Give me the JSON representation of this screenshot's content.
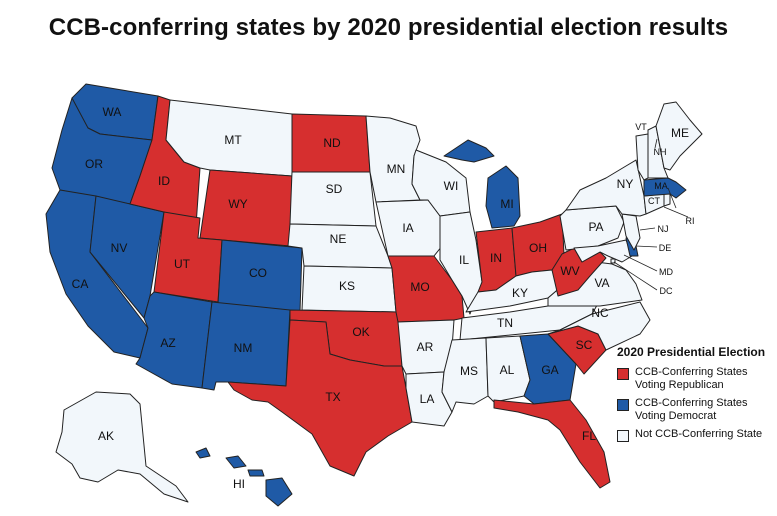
{
  "title": "CCB-conferring states by 2020 presidential election results",
  "colors": {
    "republican": "#d62f2f",
    "democrat": "#1f5aa6",
    "none": "#f2f7fb"
  },
  "legend": {
    "title": "2020 Presidential Election",
    "items": [
      {
        "label": "CCB-Conferring States Voting Republican",
        "category": "republican"
      },
      {
        "label": "CCB-Conferring States Voting Democrat",
        "category": "democrat"
      },
      {
        "label": "Not CCB-Conferring State",
        "category": "none"
      }
    ]
  },
  "states": {
    "WA": "democrat",
    "OR": "democrat",
    "CA": "democrat",
    "NV": "democrat",
    "ID": "republican",
    "MT": "none",
    "WY": "republican",
    "UT": "republican",
    "AZ": "democrat",
    "CO": "democrat",
    "NM": "democrat",
    "ND": "republican",
    "SD": "none",
    "NE": "none",
    "KS": "none",
    "OK": "republican",
    "TX": "republican",
    "MN": "none",
    "IA": "none",
    "MO": "republican",
    "AR": "none",
    "LA": "none",
    "WI": "none",
    "IL": "none",
    "MI": "democrat",
    "IN": "republican",
    "OH": "republican",
    "KY": "none",
    "TN": "none",
    "MS": "none",
    "AL": "none",
    "GA": "democrat",
    "FL": "republican",
    "SC": "republican",
    "NC": "none",
    "VA": "none",
    "WV": "republican",
    "PA": "none",
    "NY": "none",
    "VT": "none",
    "NH": "none",
    "ME": "none",
    "MA": "democrat",
    "RI": "none",
    "CT": "none",
    "NJ": "none",
    "DE": "democrat",
    "MD": "none",
    "DC": "none",
    "AK": "none",
    "HI": "democrat"
  }
}
